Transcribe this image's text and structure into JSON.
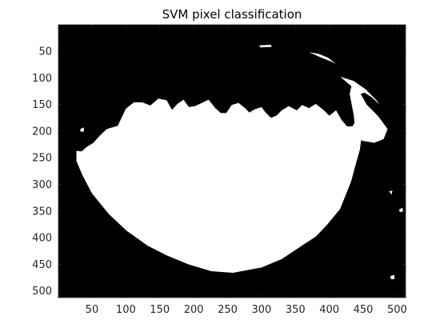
{
  "chart_data": {
    "type": "heatmap",
    "title": "SVM pixel classification",
    "xlabel": "",
    "ylabel": "",
    "xlim": [
      0.5,
      512.5
    ],
    "ylim": [
      0.5,
      512.5
    ],
    "y_reversed": true,
    "x_ticks": [
      50,
      100,
      150,
      200,
      250,
      300,
      350,
      400,
      450,
      500
    ],
    "y_ticks": [
      50,
      100,
      150,
      200,
      250,
      300,
      350,
      400,
      450,
      500
    ],
    "grid": false,
    "colormap": {
      "0": "#000000",
      "1": "#ffffff"
    },
    "background_class": 0,
    "classified_region": {
      "class": 1,
      "outline": [
        [
          27,
          237
        ],
        [
          35,
          238
        ],
        [
          42,
          230
        ],
        [
          52,
          222
        ],
        [
          62,
          208
        ],
        [
          72,
          196
        ],
        [
          88,
          190
        ],
        [
          100,
          158
        ],
        [
          112,
          146
        ],
        [
          124,
          146
        ],
        [
          136,
          152
        ],
        [
          148,
          139
        ],
        [
          160,
          142
        ],
        [
          168,
          160
        ],
        [
          176,
          149
        ],
        [
          185,
          141
        ],
        [
          193,
          155
        ],
        [
          202,
          153
        ],
        [
          212,
          147
        ],
        [
          222,
          141
        ],
        [
          232,
          157
        ],
        [
          240,
          166
        ],
        [
          248,
          166
        ],
        [
          256,
          151
        ],
        [
          266,
          147
        ],
        [
          276,
          157
        ],
        [
          282,
          165
        ],
        [
          290,
          159
        ],
        [
          300,
          155
        ],
        [
          306,
          165
        ],
        [
          314,
          175
        ],
        [
          322,
          171
        ],
        [
          330,
          161
        ],
        [
          340,
          153
        ],
        [
          352,
          161
        ],
        [
          360,
          151
        ],
        [
          370,
          157
        ],
        [
          380,
          149
        ],
        [
          392,
          161
        ],
        [
          400,
          171
        ],
        [
          410,
          161
        ],
        [
          418,
          179
        ],
        [
          426,
          191
        ],
        [
          434,
          191
        ],
        [
          444,
          171
        ],
        [
          448,
          207
        ],
        [
          445,
          235
        ],
        [
          438,
          267
        ],
        [
          432,
          295
        ],
        [
          416,
          346
        ],
        [
          396,
          377
        ],
        [
          380,
          398
        ],
        [
          356,
          418
        ],
        [
          330,
          440
        ],
        [
          300,
          456
        ],
        [
          258,
          466
        ],
        [
          226,
          463
        ],
        [
          192,
          450
        ],
        [
          160,
          433
        ],
        [
          132,
          415
        ],
        [
          101,
          387
        ],
        [
          75,
          356
        ],
        [
          50,
          317
        ],
        [
          36,
          283
        ],
        [
          27,
          256
        ]
      ]
    },
    "artifact_regions": [
      {
        "class": 1,
        "outline": [
          [
            370,
            52
          ],
          [
            384,
            55
          ],
          [
            398,
            62
          ],
          [
            410,
            74
          ],
          [
            402,
            69
          ],
          [
            388,
            62
          ]
        ]
      },
      {
        "class": 1,
        "outline": [
          [
            416,
            98
          ],
          [
            436,
            106
          ],
          [
            454,
            122
          ],
          [
            470,
            143
          ],
          [
            474,
            150
          ],
          [
            462,
            136
          ],
          [
            452,
            128
          ],
          [
            446,
            130
          ]
        ]
      },
      {
        "class": 1,
        "outline": [
          [
            434,
            108
          ],
          [
            444,
            125
          ],
          [
            455,
            150
          ],
          [
            472,
            172
          ],
          [
            486,
            196
          ],
          [
            480,
            215
          ],
          [
            466,
            222
          ],
          [
            448,
            218
          ],
          [
            438,
            195
          ],
          [
            436,
            170
          ],
          [
            433,
            150
          ],
          [
            430,
            130
          ]
        ]
      },
      {
        "class": 1,
        "outline": [
          [
            297,
            39
          ],
          [
            314,
            38
          ],
          [
            315,
            42
          ],
          [
            298,
            43
          ]
        ]
      },
      {
        "class": 1,
        "outline": [
          [
            33,
            196
          ],
          [
            38,
            193
          ],
          [
            38,
            201
          ],
          [
            33,
            201
          ]
        ]
      },
      {
        "class": 1,
        "outline": [
          [
            503,
            347
          ],
          [
            508,
            344
          ],
          [
            509,
            351
          ],
          [
            504,
            352
          ]
        ]
      },
      {
        "class": 1,
        "outline": [
          [
            490,
            472
          ],
          [
            496,
            470
          ],
          [
            496,
            478
          ],
          [
            491,
            478
          ]
        ]
      },
      {
        "class": 1,
        "outline": [
          [
            488,
            313
          ],
          [
            493,
            312
          ],
          [
            492,
            319
          ]
        ]
      }
    ]
  }
}
